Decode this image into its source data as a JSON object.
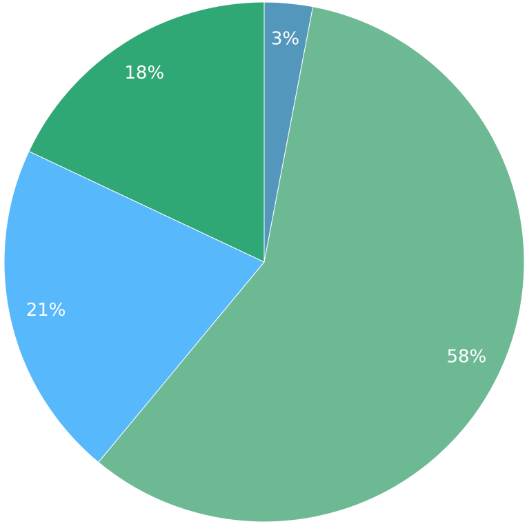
{
  "chart_data": {
    "type": "pie",
    "values": [
      3,
      58,
      21,
      18
    ],
    "value_labels": [
      "3%",
      "58%",
      "21%",
      "18%"
    ],
    "colors": [
      "#5397bd",
      "#6db994",
      "#57b8fc",
      "#30a875"
    ]
  }
}
